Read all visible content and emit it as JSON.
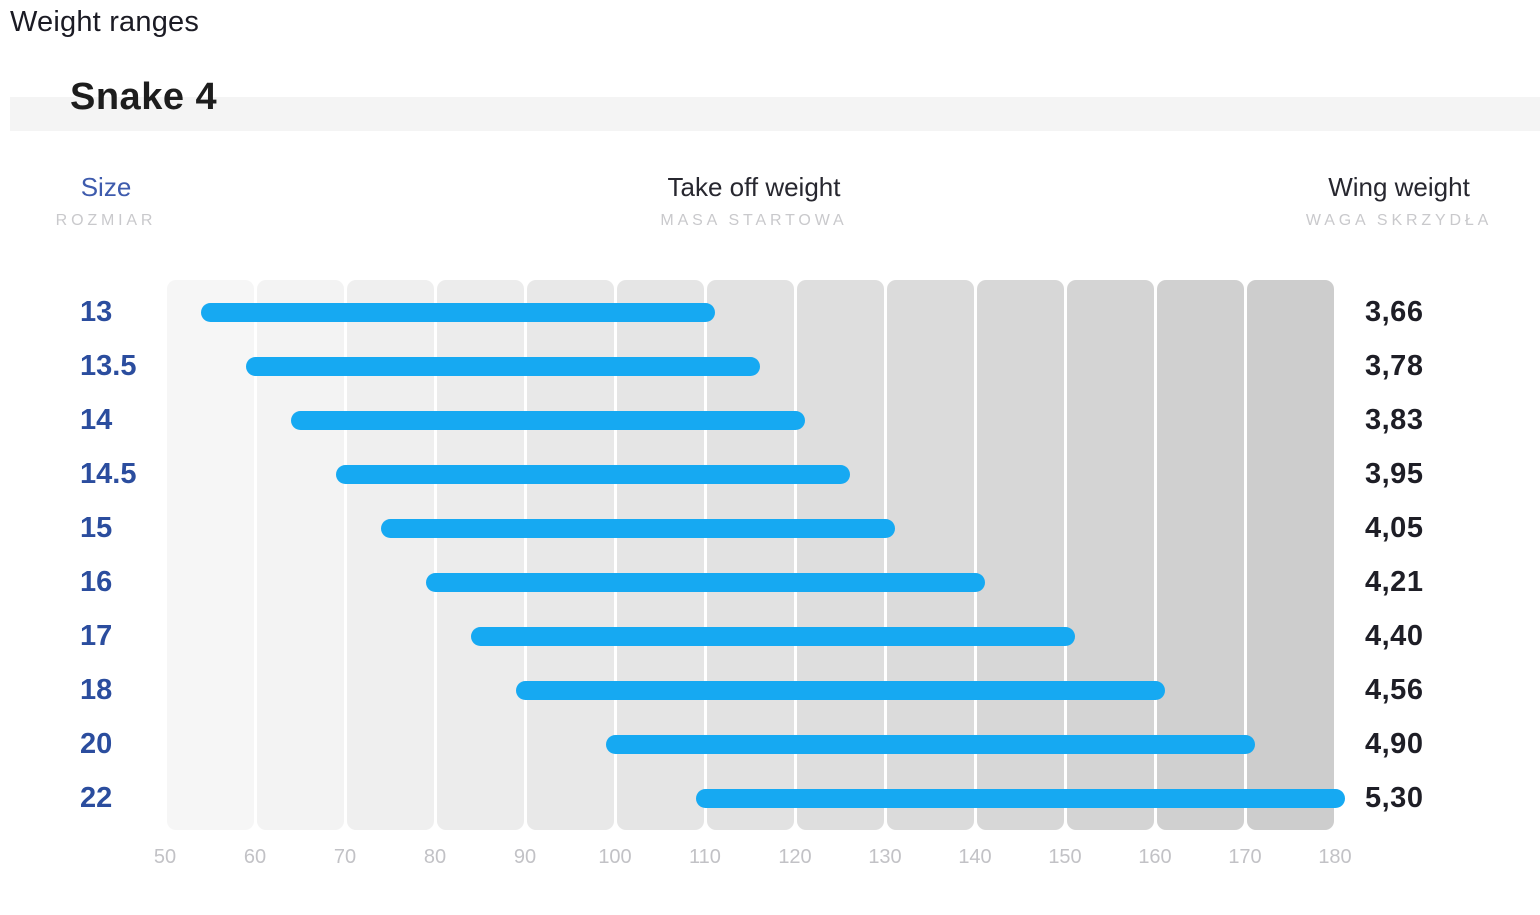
{
  "page": {
    "title": "Weight ranges"
  },
  "product": {
    "name": "Snake 4"
  },
  "table_headers": {
    "size": {
      "label": "Size",
      "sublabel": "ROZMIAR"
    },
    "takeoff": {
      "label": "Take off weight",
      "sublabel": "MASA STARTOWA"
    },
    "wing": {
      "label": "Wing weight",
      "sublabel": "WAGA SKRZYDŁA"
    }
  },
  "chart_data": {
    "type": "bar",
    "orientation": "horizontal-range",
    "title": "Weight ranges",
    "subtitle": "Snake 4",
    "xlabel": "Take off weight",
    "xlim": [
      50,
      180
    ],
    "x_ticks": [
      50,
      60,
      70,
      80,
      90,
      100,
      110,
      120,
      130,
      140,
      150,
      160,
      170,
      180
    ],
    "grid": "vertical-bands",
    "legend": false,
    "categories": [
      "13",
      "13.5",
      "14",
      "14.5",
      "15",
      "16",
      "17",
      "18",
      "20",
      "22"
    ],
    "series": [
      {
        "name": "Take off weight range (kg)",
        "ranges": [
          [
            55,
            110
          ],
          [
            60,
            115
          ],
          [
            65,
            120
          ],
          [
            70,
            125
          ],
          [
            75,
            130
          ],
          [
            80,
            140
          ],
          [
            85,
            150
          ],
          [
            90,
            160
          ],
          [
            100,
            170
          ],
          [
            110,
            180
          ]
        ]
      },
      {
        "name": "Wing weight (kg)",
        "values": [
          "3,66",
          "3,78",
          "3,83",
          "3,95",
          "4,05",
          "4,21",
          "4,40",
          "4,56",
          "4,90",
          "5,30"
        ]
      }
    ]
  },
  "colors": {
    "bar": "#16a9f2",
    "size_value_text": "#2b4d9e",
    "size_header_text": "#3e5bad",
    "header_text": "#27272f",
    "sublabel_text": "#c9c9cc",
    "tick_text": "#c2c2c6",
    "band_light": "#f6f6f6",
    "band_dark": "#cdcdcd",
    "stripe": "#f4f4f4",
    "heading_text": "#1d1d1d"
  }
}
